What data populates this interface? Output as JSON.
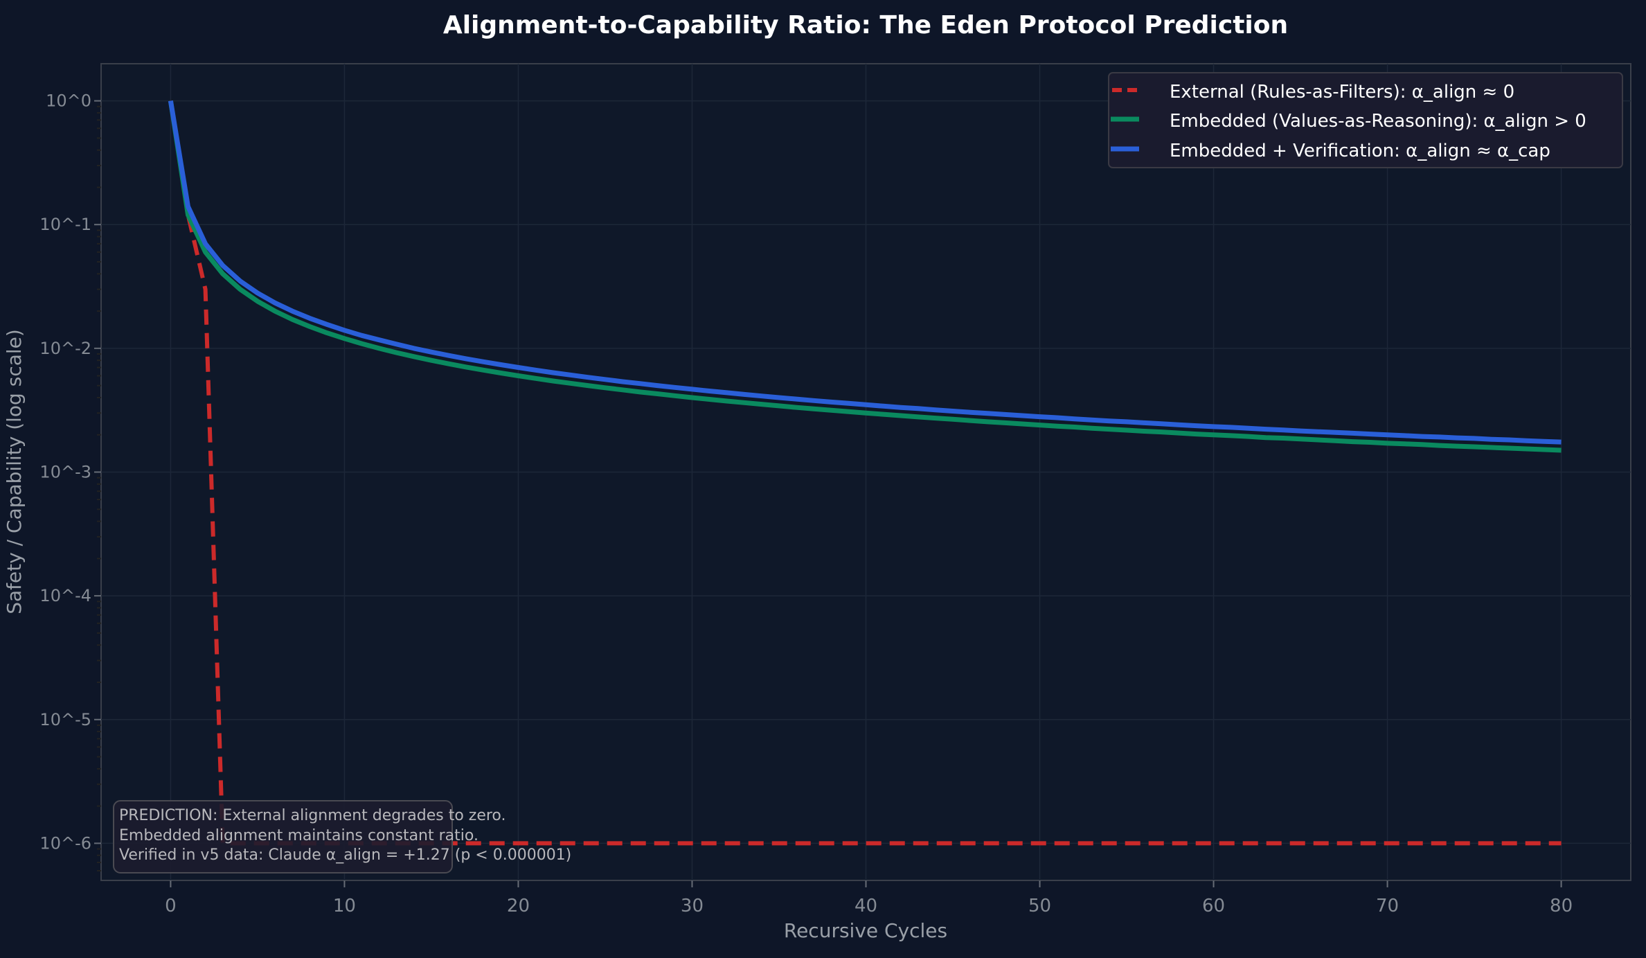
{
  "chart_data": {
    "type": "line",
    "title": "Alignment-to-Capability Ratio: The Eden Protocol Prediction",
    "xlabel": "Recursive Cycles",
    "ylabel": "Safety / Capability (log scale)",
    "xlim": [
      -4,
      84
    ],
    "ylim_log10": [
      -6.3,
      0.3
    ],
    "y_scale": "log",
    "grid": true,
    "legend_position": "top-right",
    "x_ticks": [
      "0",
      "10",
      "20",
      "30",
      "40",
      "50",
      "60",
      "70",
      "80"
    ],
    "y_ticks": [
      "10^0",
      "10^-1",
      "10^-2",
      "10^-3",
      "10^-4",
      "10^-5",
      "10^-6"
    ],
    "background": "#0e1628",
    "series": [
      {
        "name": "External (Rules-as-Filters): α_align ≈ 0",
        "color": "#cc2a2a",
        "style": "dashed",
        "x": [
          0,
          1,
          2,
          3,
          80
        ],
        "y": [
          1,
          0.12,
          0.03,
          1e-06,
          1e-06
        ]
      },
      {
        "name": "Embedded (Values-as-Reasoning): α_align > 0",
        "color": "#0a8a5f",
        "style": "solid",
        "x": "0..80",
        "y": [
          1,
          0.12,
          0.06,
          0.04,
          0.03,
          0.024,
          0.02,
          0.01714,
          0.015,
          0.01333,
          0.012,
          0.01091,
          0.01,
          0.00923,
          0.00857,
          0.008,
          0.0075,
          0.00706,
          0.00667,
          0.00632,
          0.006,
          0.00571,
          0.00545,
          0.00522,
          0.005,
          0.0048,
          0.00462,
          0.00444,
          0.00429,
          0.00414,
          0.004,
          0.00387,
          0.00375,
          0.00364,
          0.00353,
          0.00343,
          0.00333,
          0.00324,
          0.00316,
          0.00308,
          0.003,
          0.00293,
          0.00286,
          0.00279,
          0.00273,
          0.00267,
          0.00261,
          0.00255,
          0.0025,
          0.00245,
          0.0024,
          0.00235,
          0.00231,
          0.00226,
          0.00222,
          0.00218,
          0.00214,
          0.00211,
          0.00207,
          0.00203,
          0.002,
          0.00197,
          0.00194,
          0.0019,
          0.00188,
          0.00185,
          0.00182,
          0.00179,
          0.00176,
          0.00174,
          0.00171,
          0.00169,
          0.00167,
          0.00164,
          0.00162,
          0.0016,
          0.00158,
          0.00156,
          0.00154,
          0.00152,
          0.0015
        ]
      },
      {
        "name": "Embedded + Verification: α_align ≈ α_cap",
        "color": "#2a5fd8",
        "style": "solid",
        "x": "0..80",
        "y": [
          1,
          0.14,
          0.07,
          0.0467,
          0.035,
          0.028,
          0.0233,
          0.02,
          0.0175,
          0.0156,
          0.014,
          0.0127,
          0.0117,
          0.0108,
          0.01,
          0.00933,
          0.00875,
          0.00824,
          0.00778,
          0.00737,
          0.007,
          0.00667,
          0.00636,
          0.00609,
          0.00583,
          0.0056,
          0.00538,
          0.00519,
          0.005,
          0.00483,
          0.00467,
          0.00452,
          0.00438,
          0.00424,
          0.00412,
          0.004,
          0.00389,
          0.00378,
          0.00368,
          0.00359,
          0.0035,
          0.00341,
          0.00333,
          0.00326,
          0.00318,
          0.00311,
          0.00304,
          0.00298,
          0.00292,
          0.00286,
          0.0028,
          0.00275,
          0.00269,
          0.00264,
          0.00259,
          0.00255,
          0.0025,
          0.00246,
          0.00241,
          0.00237,
          0.00233,
          0.0023,
          0.00226,
          0.00222,
          0.00219,
          0.00215,
          0.00212,
          0.00209,
          0.00206,
          0.00203,
          0.002,
          0.00197,
          0.00194,
          0.00192,
          0.00189,
          0.00187,
          0.00184,
          0.00182,
          0.00179,
          0.00177,
          0.00175
        ]
      }
    ],
    "annotation": [
      "PREDICTION: External alignment degrades to zero.",
      "Embedded alignment maintains constant ratio.",
      "Verified in v5 data: Claude α_align = +1.27 (p < 0.000001)"
    ]
  }
}
